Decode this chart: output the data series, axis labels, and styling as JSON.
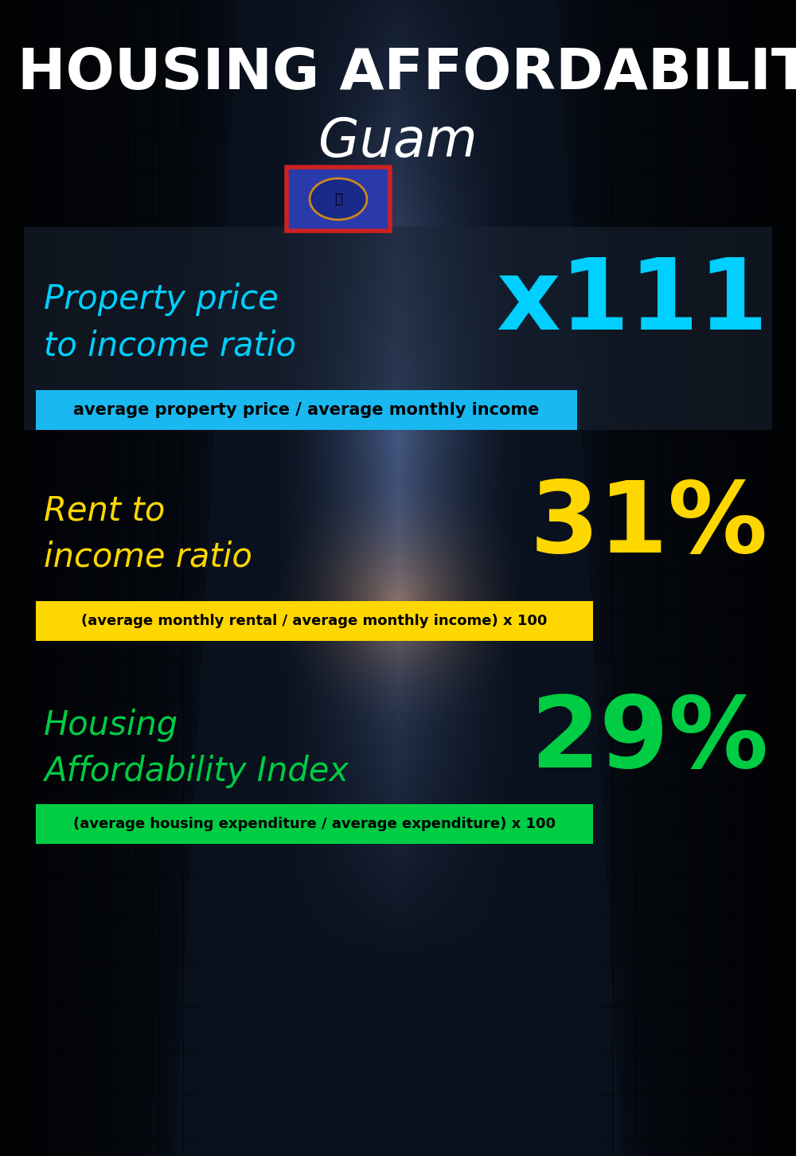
{
  "title_line1": "HOUSING AFFORDABILITY",
  "title_line2": "Guam",
  "bg_color": "#080d14",
  "section1_label": "Property price\nto income ratio",
  "section1_value": "x111",
  "section1_label_color": "#00cfff",
  "section1_value_color": "#00cfff",
  "section1_formula": "average property price / average monthly income",
  "section1_formula_bg": "#1ab8f0",
  "section2_label": "Rent to\nincome ratio",
  "section2_value": "31%",
  "section2_label_color": "#ffd700",
  "section2_value_color": "#ffd700",
  "section2_formula": "(average monthly rental / average monthly income) x 100",
  "section2_formula_bg": "#ffd700",
  "section3_label": "Housing\nAffordability Index",
  "section3_value": "29%",
  "section3_label_color": "#00cc44",
  "section3_value_color": "#00cc44",
  "section3_formula": "(average housing expenditure / average expenditure) x 100",
  "section3_formula_bg": "#00cc44",
  "title_color": "#ffffff",
  "subtitle_color": "#ffffff",
  "fig_width": 10.0,
  "fig_height": 14.52
}
